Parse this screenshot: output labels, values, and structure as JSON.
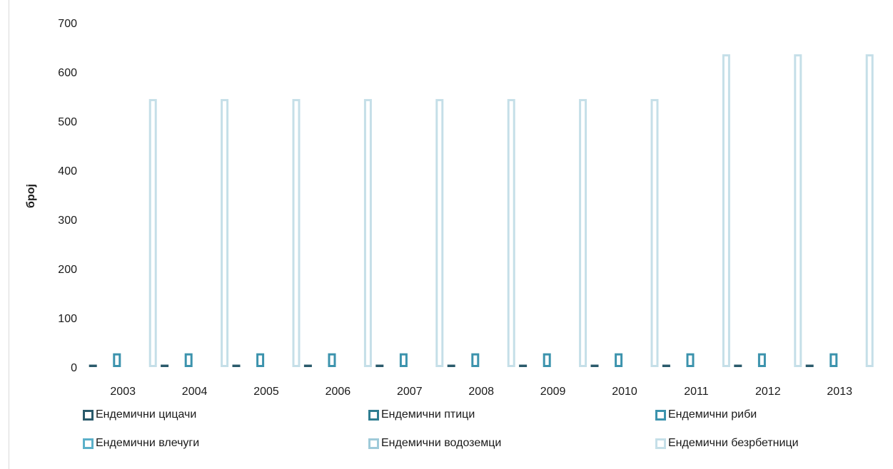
{
  "chart_data": {
    "type": "bar",
    "title": "",
    "xlabel": "",
    "ylabel": "број",
    "ylim": [
      0,
      700
    ],
    "yticks": [
      0,
      100,
      200,
      300,
      400,
      500,
      600,
      700
    ],
    "categories": [
      "2003",
      "2004",
      "2005",
      "2006",
      "2007",
      "2008",
      "2009",
      "2010",
      "2011",
      "2012",
      "2013"
    ],
    "grid": false,
    "legend_position": "bottom",
    "bar_style": "outlined",
    "series": [
      {
        "name": "Ендемични цицачи",
        "color": "#2a5a6b",
        "values": [
          5,
          5,
          5,
          5,
          5,
          5,
          5,
          5,
          5,
          5,
          5
        ]
      },
      {
        "name": "Ендемични птици",
        "color": "#2e7d91",
        "values": [
          0,
          0,
          0,
          0,
          0,
          0,
          0,
          0,
          0,
          0,
          0
        ]
      },
      {
        "name": "Ендемични риби",
        "color": "#3c93ad",
        "values": [
          28,
          28,
          28,
          28,
          28,
          28,
          28,
          28,
          28,
          28,
          28
        ]
      },
      {
        "name": "Ендемични влечуги",
        "color": "#5bb0c9",
        "values": [
          0,
          0,
          0,
          0,
          0,
          0,
          0,
          0,
          0,
          0,
          0
        ]
      },
      {
        "name": "Ендемични водоземци",
        "color": "#9ecad9",
        "values": [
          0,
          0,
          0,
          0,
          0,
          0,
          0,
          0,
          0,
          0,
          0
        ]
      },
      {
        "name": "Ендемични безрбетници",
        "color": "#c5dfe8",
        "values": [
          545,
          545,
          545,
          545,
          545,
          545,
          545,
          545,
          636,
          636,
          636
        ]
      }
    ]
  }
}
